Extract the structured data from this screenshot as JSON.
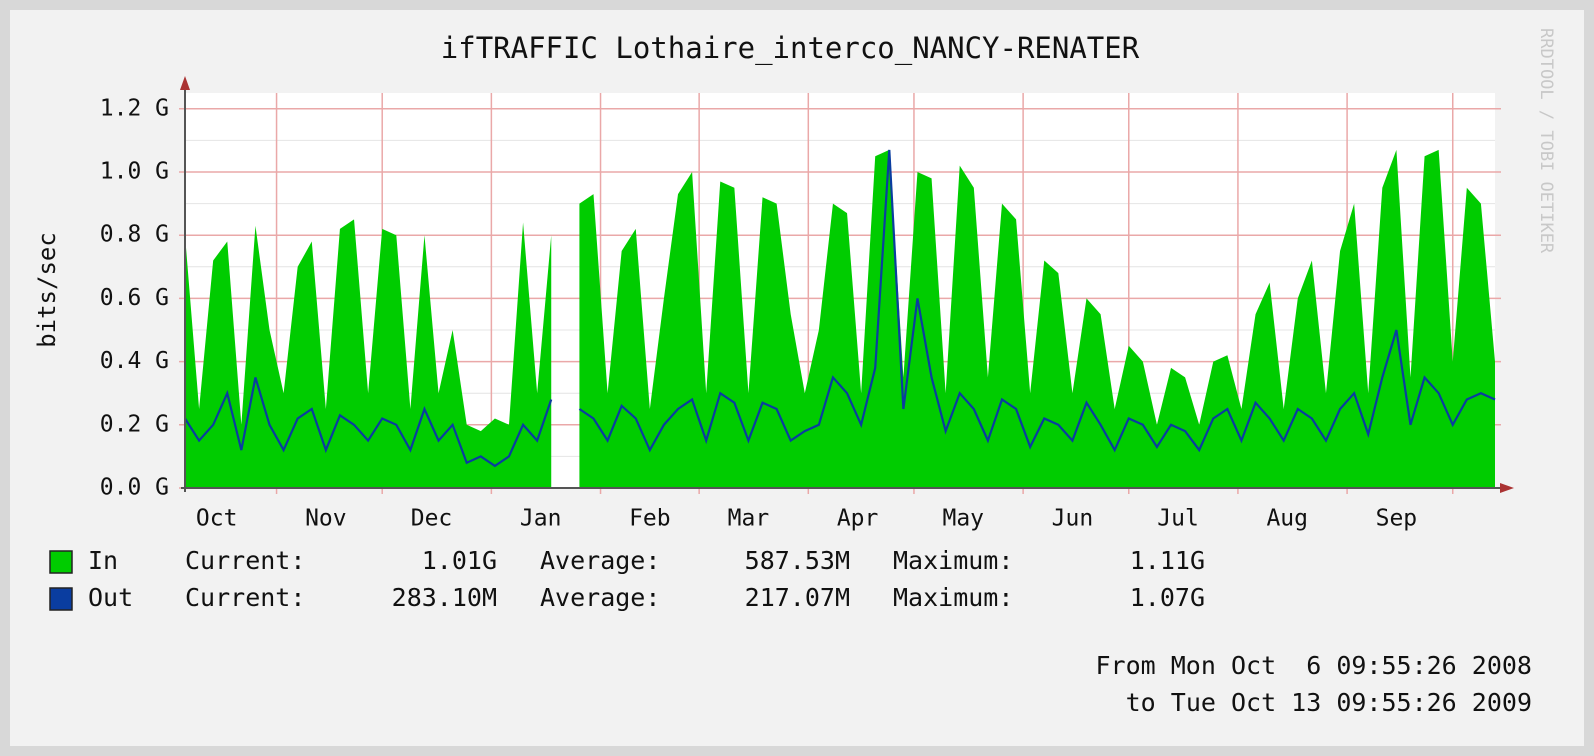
{
  "chart_data": {
    "type": "area",
    "title": "ifTRAFFIC Lothaire_interco_NANCY-RENATER",
    "y_label": "bits/sec",
    "watermark": "RRDTOOL / TOBI OETIKER",
    "x": [
      0,
      4,
      8,
      12,
      16,
      20,
      24,
      28,
      32,
      36,
      40,
      44,
      48,
      52,
      56,
      60,
      64,
      68,
      72,
      76,
      80,
      84,
      88,
      92,
      96,
      100,
      104,
      108,
      112,
      116,
      120,
      124,
      128,
      132,
      136,
      140,
      144,
      148,
      152,
      156,
      160,
      164,
      168,
      172,
      176,
      180,
      184,
      188,
      192,
      196,
      200,
      204,
      208,
      212,
      216,
      220,
      224,
      228,
      232,
      236,
      240,
      244,
      248,
      252,
      256,
      260,
      264,
      268,
      272,
      276,
      280,
      284,
      288,
      292,
      296,
      300,
      304,
      308,
      312,
      316,
      320,
      324,
      328,
      332,
      336,
      340,
      344,
      348,
      352,
      356,
      360,
      364,
      368,
      372
    ],
    "xlim": [
      0,
      372
    ],
    "xticks": [
      {
        "value": 9,
        "label": "Oct"
      },
      {
        "value": 40,
        "label": "Nov"
      },
      {
        "value": 70,
        "label": "Dec"
      },
      {
        "value": 101,
        "label": "Jan"
      },
      {
        "value": 132,
        "label": "Feb"
      },
      {
        "value": 160,
        "label": "Mar"
      },
      {
        "value": 191,
        "label": "Apr"
      },
      {
        "value": 221,
        "label": "May"
      },
      {
        "value": 252,
        "label": "Jun"
      },
      {
        "value": 282,
        "label": "Jul"
      },
      {
        "value": 313,
        "label": "Aug"
      },
      {
        "value": 344,
        "label": "Sep"
      }
    ],
    "xgrid": [
      26,
      56,
      87,
      118,
      146,
      177,
      207,
      238,
      268,
      299,
      330,
      360
    ],
    "ylim": [
      0,
      1.25
    ],
    "yticks": [
      {
        "value": 0,
        "label": "0.0 G"
      },
      {
        "value": 0.2,
        "label": "0.2 G"
      },
      {
        "value": 0.4,
        "label": "0.4 G"
      },
      {
        "value": 0.6,
        "label": "0.6 G"
      },
      {
        "value": 0.8,
        "label": "0.8 G"
      },
      {
        "value": 1.0,
        "label": "1.0 G"
      },
      {
        "value": 1.2,
        "label": "1.2 G"
      }
    ],
    "grid": true,
    "legend_labels": [
      "Current:",
      "Average:",
      "Maximum:"
    ],
    "series": [
      {
        "name": "In",
        "color": "#00cc00",
        "style": "area",
        "current": "1.01G",
        "average": "587.53M",
        "maximum": "1.11G",
        "values": [
          0.8,
          0.25,
          0.72,
          0.78,
          0.2,
          0.83,
          0.5,
          0.3,
          0.7,
          0.78,
          0.25,
          0.82,
          0.85,
          0.3,
          0.82,
          0.8,
          0.25,
          0.8,
          0.3,
          0.5,
          0.2,
          0.18,
          0.22,
          0.2,
          0.84,
          0.3,
          0.8,
          null,
          0.9,
          0.93,
          0.3,
          0.75,
          0.82,
          0.25,
          0.6,
          0.93,
          1.0,
          0.3,
          0.97,
          0.95,
          0.3,
          0.92,
          0.9,
          0.55,
          0.3,
          0.5,
          0.9,
          0.87,
          0.3,
          1.05,
          1.07,
          0.35,
          1.0,
          0.98,
          0.3,
          1.02,
          0.95,
          0.35,
          0.9,
          0.85,
          0.3,
          0.72,
          0.68,
          0.3,
          0.6,
          0.55,
          0.25,
          0.45,
          0.4,
          0.2,
          0.38,
          0.35,
          0.2,
          0.4,
          0.42,
          0.25,
          0.55,
          0.65,
          0.25,
          0.6,
          0.72,
          0.3,
          0.75,
          0.9,
          0.3,
          0.95,
          1.07,
          0.35,
          1.05,
          1.07,
          0.4,
          0.95,
          0.9,
          0.4
        ]
      },
      {
        "name": "Out",
        "color": "#0a3da0",
        "style": "line",
        "current": "283.10M",
        "average": "217.07M",
        "maximum": "1.07G",
        "values": [
          0.22,
          0.15,
          0.2,
          0.3,
          0.12,
          0.35,
          0.2,
          0.12,
          0.22,
          0.25,
          0.12,
          0.23,
          0.2,
          0.15,
          0.22,
          0.2,
          0.12,
          0.25,
          0.15,
          0.2,
          0.08,
          0.1,
          0.07,
          0.1,
          0.2,
          0.15,
          0.28,
          null,
          0.25,
          0.22,
          0.15,
          0.26,
          0.22,
          0.12,
          0.2,
          0.25,
          0.28,
          0.15,
          0.3,
          0.27,
          0.15,
          0.27,
          0.25,
          0.15,
          0.18,
          0.2,
          0.35,
          0.3,
          0.2,
          0.38,
          1.07,
          0.25,
          0.6,
          0.35,
          0.18,
          0.3,
          0.25,
          0.15,
          0.28,
          0.25,
          0.13,
          0.22,
          0.2,
          0.15,
          0.27,
          0.2,
          0.12,
          0.22,
          0.2,
          0.13,
          0.2,
          0.18,
          0.12,
          0.22,
          0.25,
          0.15,
          0.27,
          0.22,
          0.15,
          0.25,
          0.22,
          0.15,
          0.25,
          0.3,
          0.17,
          0.35,
          0.5,
          0.2,
          0.35,
          0.3,
          0.2,
          0.28,
          0.3,
          0.28
        ]
      }
    ],
    "footer": [
      "From Mon Oct  6 09:55:26 2008",
      "to Tue Oct 13 09:55:26 2009"
    ]
  }
}
